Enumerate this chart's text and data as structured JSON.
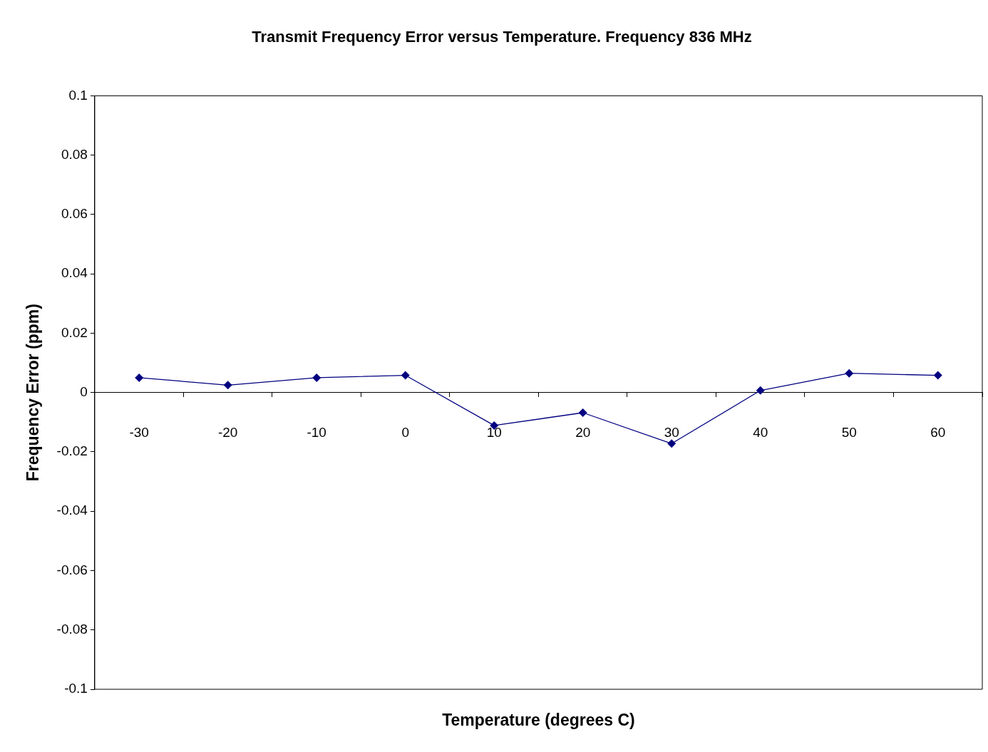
{
  "chart_data": {
    "type": "line",
    "title": "Transmit Frequency Error versus Temperature. Frequency 836 MHz",
    "xlabel": "Temperature (degrees C)",
    "ylabel": "Frequency Error (ppm)",
    "categories": [
      "-30",
      "-20",
      "-10",
      "0",
      "10",
      "20",
      "30",
      "40",
      "50",
      "60"
    ],
    "series": [
      {
        "color": "#000080",
        "values": [
          0.005,
          0.0025,
          0.005,
          0.0058,
          -0.0111,
          -0.0068,
          -0.0172,
          0.0007,
          0.0065,
          0.0058
        ]
      }
    ],
    "ylim": [
      -0.1,
      0.1
    ],
    "yticks": [
      -0.1,
      -0.08,
      -0.06,
      -0.04,
      -0.02,
      0,
      0.02,
      0.04,
      0.06,
      0.08,
      0.1
    ],
    "grid": false,
    "legend": false,
    "marker": "diamond",
    "line_style": "solid"
  }
}
